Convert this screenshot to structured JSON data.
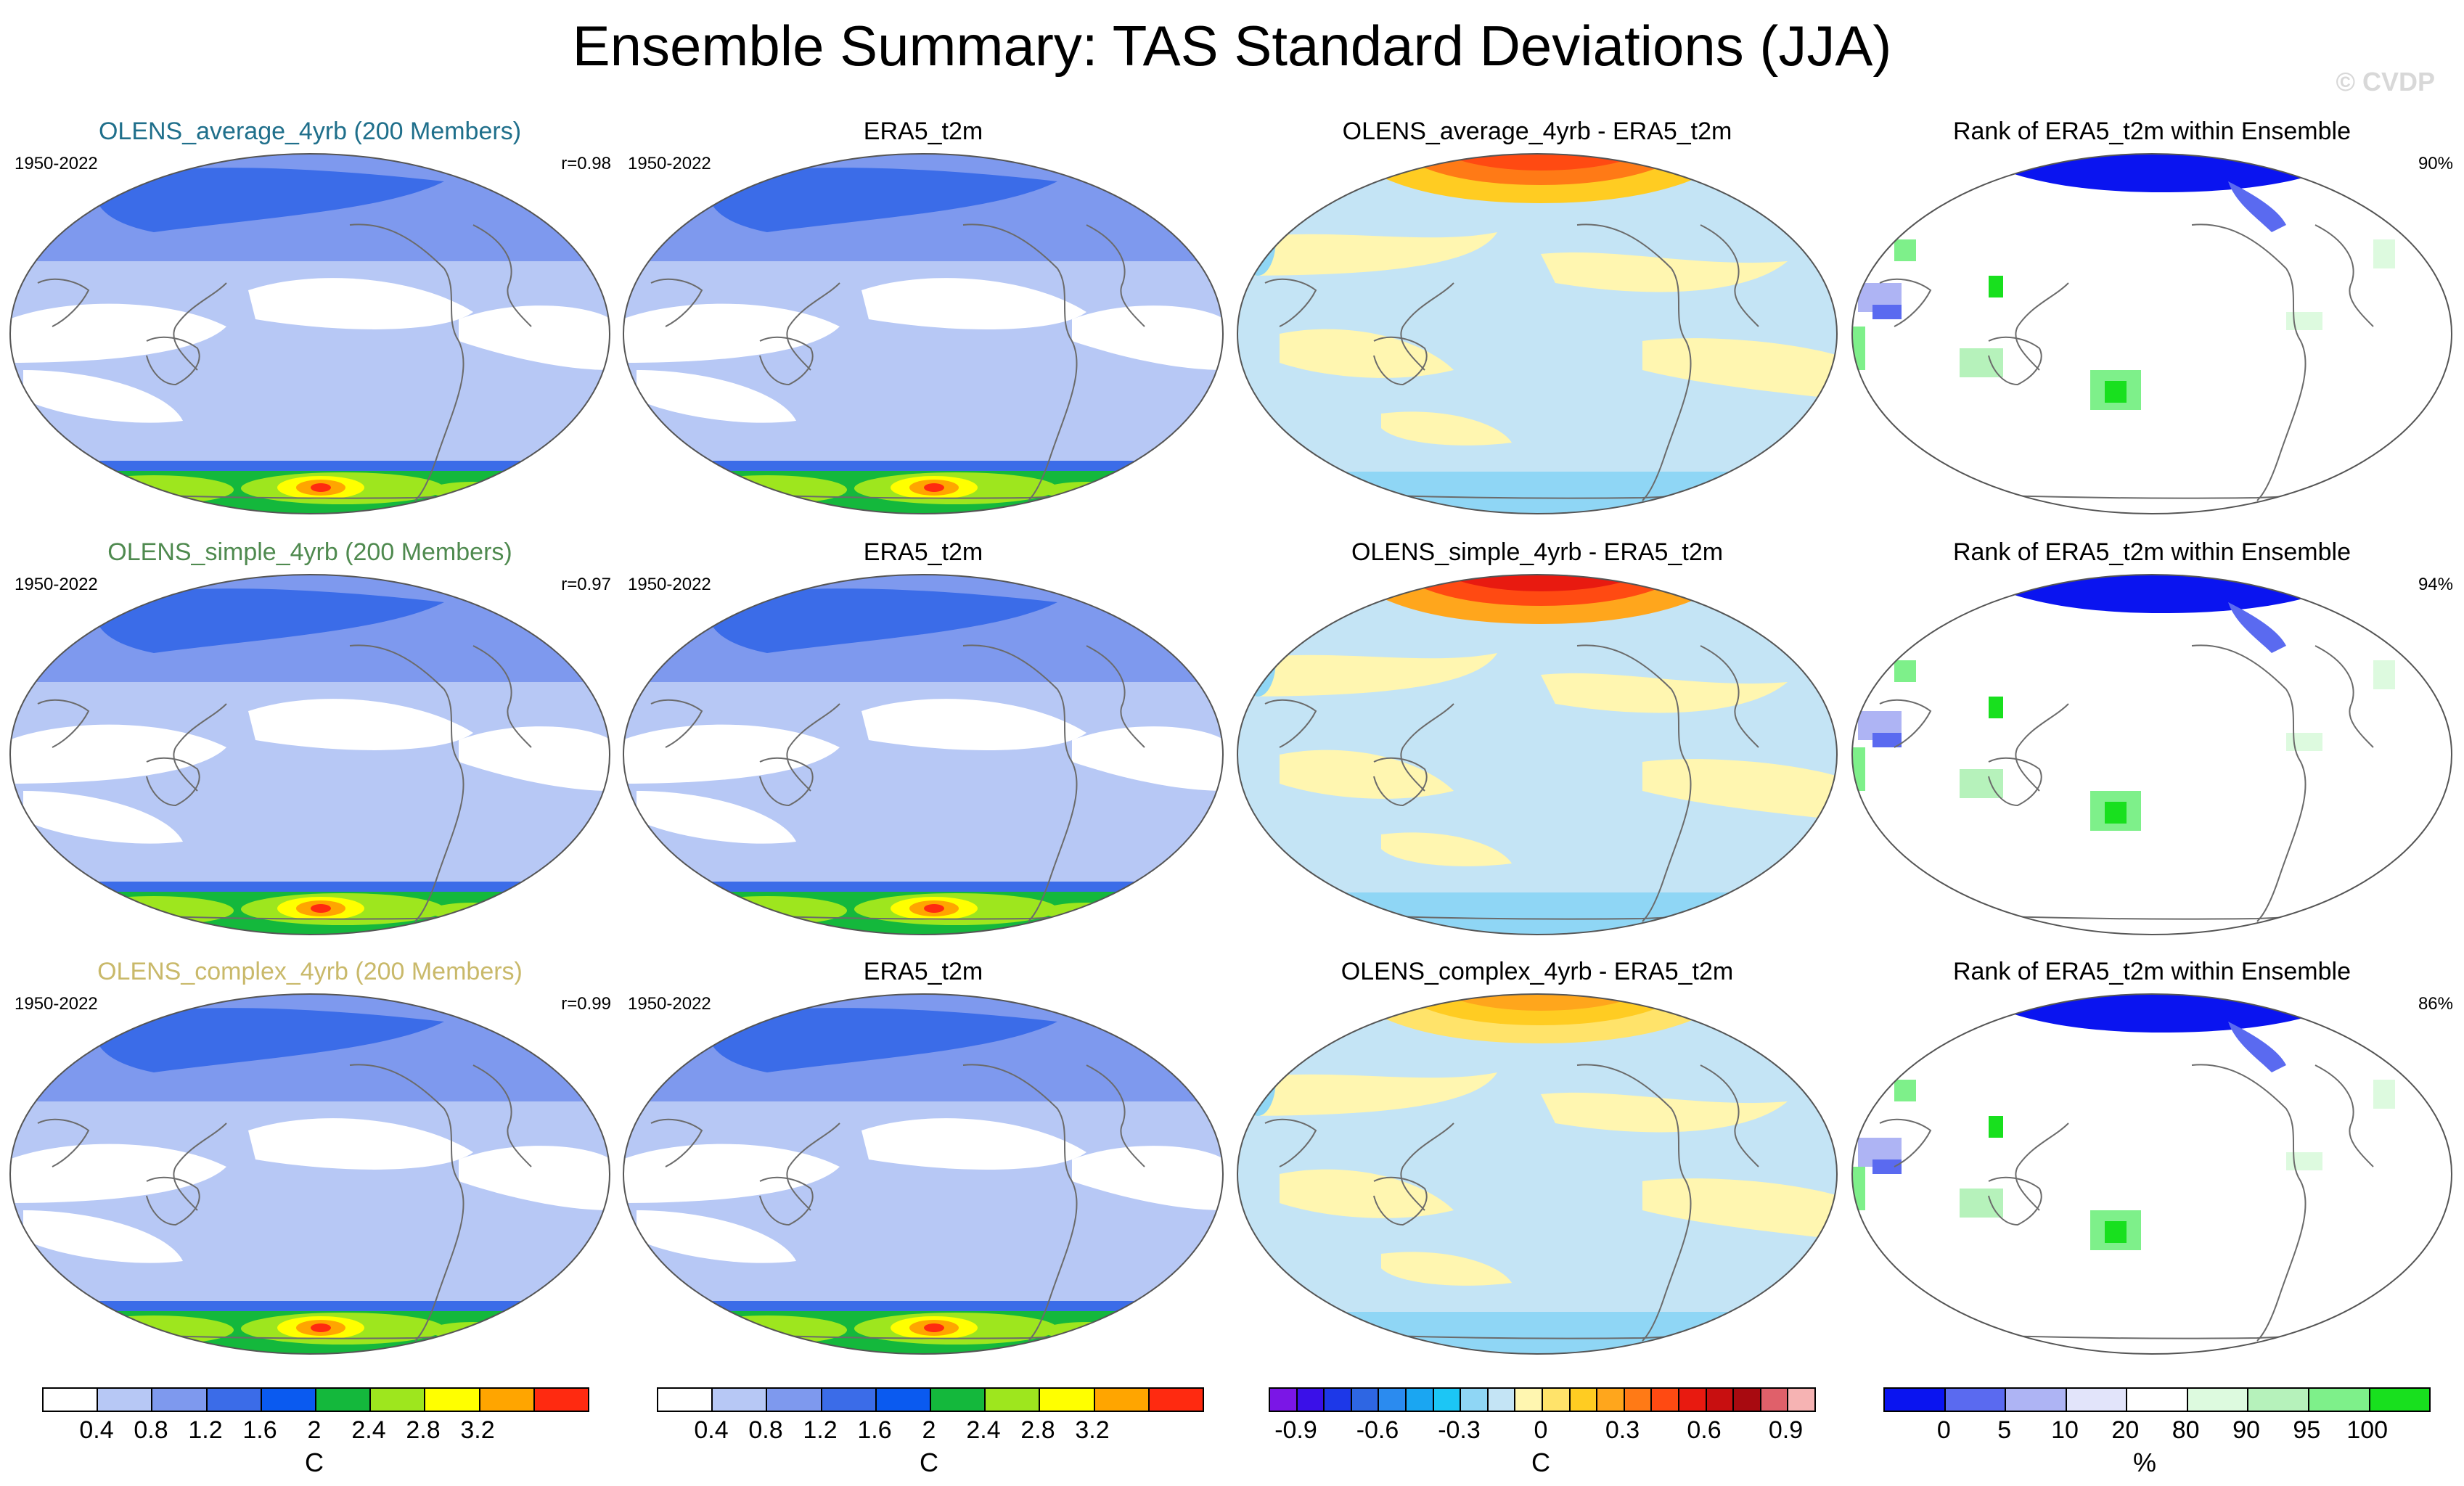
{
  "title": "Ensemble Summary: TAS Standard Deviations (JJA)",
  "watermark": "© CVDP",
  "period": "1950-2022",
  "colors": {
    "title_average": "#1f6f8b",
    "title_simple": "#4f8a4f",
    "title_complex": "#c9b96a"
  },
  "rows": [
    {
      "ens_title": "OLENS_average_4yrb (200 Members)",
      "corr": "r=0.98",
      "obs_title": "ERA5_t2m",
      "diff_title": "OLENS_average_4yrb - ERA5_t2m",
      "rank_title": "Rank of ERA5_t2m within Ensemble",
      "rank_pct": "90%"
    },
    {
      "ens_title": "OLENS_simple_4yrb (200 Members)",
      "corr": "r=0.97",
      "obs_title": "ERA5_t2m",
      "diff_title": "OLENS_simple_4yrb - ERA5_t2m",
      "rank_title": "Rank of ERA5_t2m within Ensemble",
      "rank_pct": "94%"
    },
    {
      "ens_title": "OLENS_complex_4yrb (200 Members)",
      "corr": "r=0.99",
      "obs_title": "ERA5_t2m",
      "diff_title": "OLENS_complex_4yrb - ERA5_t2m",
      "rank_title": "Rank of ERA5_t2m within Ensemble",
      "rank_pct": "86%"
    }
  ],
  "legends": {
    "stddev": {
      "unit": "C",
      "ticks": [
        "0.4",
        "0.8",
        "1.2",
        "1.6",
        "2",
        "2.4",
        "2.8",
        "3.2"
      ],
      "colors": [
        "#ffffff",
        "#b7c8f5",
        "#7e99ee",
        "#3b6ce8",
        "#0a5af0",
        "#14b83c",
        "#9ee61e",
        "#ffff00",
        "#ffa500",
        "#ff2a10"
      ]
    },
    "diff": {
      "unit": "C",
      "ticks": [
        "-0.9",
        "-0.6",
        "-0.3",
        "0",
        "0.3",
        "0.6",
        "0.9"
      ],
      "colors": [
        "#7b16e6",
        "#3a10e8",
        "#1d38e8",
        "#2e66e3",
        "#2b8bef",
        "#1aa6f2",
        "#1cc6f5",
        "#8fd6f5",
        "#c4e4f5",
        "#fff6b0",
        "#ffe36a",
        "#ffcc22",
        "#ffa61c",
        "#ff7a16",
        "#ff4a12",
        "#e81a10",
        "#c80f10",
        "#a80a10",
        "#e0606a",
        "#f6b3b3"
      ]
    },
    "rank": {
      "unit": "%",
      "ticks": [
        "0",
        "5",
        "10",
        "20",
        "80",
        "90",
        "95",
        "100"
      ],
      "colors": [
        "#0a14f0",
        "#5a6af0",
        "#aeb4f4",
        "#e2e4fa",
        "#ffffff",
        "#ddfadf",
        "#b6f2bb",
        "#7ef08a",
        "#18e01e"
      ]
    }
  },
  "chart_data": [
    {
      "type": "map",
      "variable": "TAS standard deviation (JJA)",
      "period": "1950-2022",
      "panels": [
        {
          "title": "OLENS_average_4yrb (200 Members)",
          "pattern_correlation": 0.98
        },
        {
          "title": "OLENS_simple_4yrb (200 Members)",
          "pattern_correlation": 0.97
        },
        {
          "title": "OLENS_complex_4yrb (200 Members)",
          "pattern_correlation": 0.99
        },
        {
          "title": "ERA5_t2m"
        }
      ],
      "legend_levels": [
        0.4,
        0.8,
        1.2,
        1.6,
        2,
        2.4,
        2.8,
        3.2
      ],
      "unit": "C"
    },
    {
      "type": "map",
      "variable": "ensemble minus observations",
      "panels": [
        {
          "title": "OLENS_average_4yrb - ERA5_t2m"
        },
        {
          "title": "OLENS_simple_4yrb - ERA5_t2m"
        },
        {
          "title": "OLENS_complex_4yrb - ERA5_t2m"
        }
      ],
      "legend_levels": [
        -0.9,
        -0.6,
        -0.3,
        0,
        0.3,
        0.6,
        0.9
      ],
      "unit": "C"
    },
    {
      "type": "map",
      "variable": "rank of ERA5_t2m within ensemble",
      "panels": [
        {
          "title": "Rank of ERA5_t2m within Ensemble",
          "percent_within": 90
        },
        {
          "title": "Rank of ERA5_t2m within Ensemble",
          "percent_within": 94
        },
        {
          "title": "Rank of ERA5_t2m within Ensemble",
          "percent_within": 86
        }
      ],
      "legend_levels": [
        0,
        5,
        10,
        20,
        80,
        90,
        95,
        100
      ],
      "unit": "%"
    }
  ]
}
